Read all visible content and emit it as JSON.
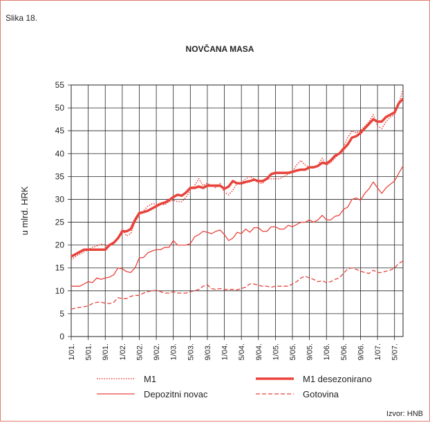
{
  "chart_data": {
    "type": "line",
    "caption": "Slika 18.",
    "title": "NOVČANA MASA",
    "y_label": "u mlrd. HRK",
    "source": "Izvor: HNB",
    "categories": [
      "1/01.",
      null,
      null,
      null,
      "5/01.",
      null,
      null,
      null,
      "9/01.",
      null,
      null,
      null,
      "1/02.",
      null,
      null,
      null,
      "5/02.",
      null,
      null,
      null,
      "9/02.",
      null,
      null,
      null,
      "1/03.",
      null,
      null,
      null,
      "5/03.",
      null,
      null,
      null,
      "9/03.",
      null,
      null,
      null,
      "1/04.",
      null,
      null,
      null,
      "5/04.",
      null,
      null,
      null,
      "9/04.",
      null,
      null,
      null,
      "1/05.",
      null,
      null,
      null,
      "5/05.",
      null,
      null,
      null,
      "9/05.",
      null,
      null,
      null,
      "1/06.",
      null,
      null,
      null,
      "5/06.",
      null,
      null,
      null,
      "9/06.",
      null,
      null,
      null,
      "1/07.",
      null,
      null,
      null,
      "5/07.",
      null,
      null
    ],
    "series": [
      {
        "name": "M1",
        "color": "#e8423a",
        "line_style": "dotted",
        "values": [
          16.8,
          17.5,
          18,
          18.5,
          19,
          19.5,
          19.8,
          20.2,
          20,
          19.8,
          20.5,
          21.5,
          23.5,
          22,
          22.5,
          25,
          26.5,
          27.5,
          28.5,
          29,
          29,
          29,
          28.8,
          29.5,
          29.8,
          29.5,
          29.5,
          30.5,
          32,
          33,
          34.5,
          33,
          33.5,
          33,
          32.5,
          33.5,
          31.5,
          31,
          32,
          33.5,
          33.5,
          34.5,
          35,
          34.5,
          33.5,
          33.5,
          34.5,
          34.5,
          34.5,
          34.5,
          35,
          35.5,
          36,
          37.5,
          38.5,
          37.5,
          37,
          37,
          37.5,
          39,
          37.5,
          38,
          39,
          40,
          41.5,
          43.5,
          45,
          44.5,
          45,
          46,
          47,
          48.5,
          46,
          45.5,
          47,
          48,
          48.5,
          51,
          54
        ]
      },
      {
        "name": "M1 desezonirano",
        "color": "#e8423a",
        "line_style": "thick",
        "values": [
          17.5,
          18,
          18.5,
          19,
          19,
          19,
          19,
          19,
          19,
          20,
          20.5,
          21.5,
          23,
          23,
          23.5,
          25.5,
          27,
          27.2,
          27.5,
          28,
          28.5,
          29,
          29.3,
          29.8,
          30.5,
          31,
          30.8,
          31.5,
          32.5,
          32.5,
          32.8,
          32.5,
          33,
          33,
          33,
          33,
          32.3,
          32.8,
          34,
          33.5,
          33.5,
          33.8,
          34,
          34.3,
          34,
          34,
          34.5,
          35.5,
          35.8,
          35.8,
          35.8,
          35.8,
          36,
          36.3,
          36.5,
          36.5,
          37,
          37,
          37.3,
          38,
          37.8,
          38.5,
          39.5,
          40,
          41,
          42,
          43.5,
          43.8,
          44.5,
          45.5,
          46.5,
          47.5,
          47,
          47,
          48,
          48.5,
          49,
          51,
          52
        ]
      },
      {
        "name": "Depozitni novac",
        "color": "#e8423a",
        "line_style": "solid",
        "values": [
          11,
          11,
          11,
          11.5,
          12,
          11.8,
          12.8,
          12.5,
          12.8,
          13,
          13.5,
          15,
          14.8,
          14.2,
          14,
          15,
          17.2,
          17.3,
          18.3,
          18.7,
          19,
          19,
          19.5,
          19.5,
          21,
          20,
          20,
          20,
          20.3,
          21.8,
          22.3,
          23,
          22.8,
          22.5,
          23,
          23.3,
          22.3,
          21,
          21.5,
          22.8,
          22.5,
          23.5,
          22.8,
          23.8,
          23.8,
          23,
          23,
          24,
          24,
          23.5,
          23.5,
          24.3,
          24,
          24.5,
          25,
          25,
          25.5,
          25,
          25.5,
          26.5,
          25.5,
          25.5,
          26.3,
          26.5,
          27.8,
          28.3,
          30,
          30.3,
          29.8,
          31.3,
          32.3,
          33.8,
          32.5,
          31.3,
          32.5,
          33.3,
          34,
          35.7,
          37.3
        ]
      },
      {
        "name": "Gotovina",
        "color": "#e8423a",
        "line_style": "dashed",
        "values": [
          6,
          6.2,
          6.4,
          6.5,
          6.7,
          7.2,
          7.5,
          7.5,
          7.3,
          7.2,
          7.5,
          8.5,
          8.3,
          8.3,
          8.8,
          9,
          9,
          9.5,
          9.8,
          10,
          10.1,
          9.8,
          9.5,
          9.5,
          9.8,
          9.5,
          9.5,
          9.5,
          9.8,
          10,
          10.3,
          11,
          11.3,
          10.5,
          10.3,
          10.5,
          10.3,
          10.3,
          10.3,
          10.2,
          10.5,
          10.8,
          11.5,
          11.5,
          11.2,
          11,
          11,
          10.8,
          11,
          11,
          11,
          11,
          11.5,
          12,
          12.8,
          13.2,
          12.8,
          12.5,
          12,
          12.2,
          11.8,
          12,
          12.5,
          12.8,
          13.8,
          14.8,
          15,
          14.7,
          14.3,
          14,
          13.8,
          14.5,
          14,
          14,
          14.3,
          14.5,
          15,
          16,
          16.5
        ]
      }
    ],
    "ylim": [
      0,
      55
    ],
    "yticks": [
      0,
      5,
      10,
      15,
      20,
      25,
      30,
      35,
      40,
      45,
      50,
      55
    ],
    "grid": true
  }
}
